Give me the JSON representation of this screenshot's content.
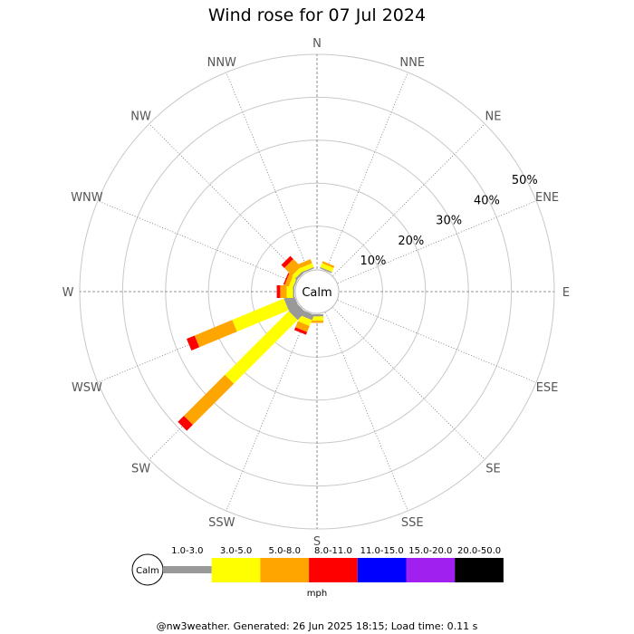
{
  "chart_data": {
    "type": "wind-rose",
    "title": "Wind rose for 07 Jul 2024",
    "directions": [
      "N",
      "NNE",
      "NE",
      "ENE",
      "E",
      "ESE",
      "SE",
      "SSE",
      "S",
      "SSW",
      "SW",
      "WSW",
      "W",
      "WNW",
      "NW",
      "NNW"
    ],
    "ring_labels": [
      "10%",
      "20%",
      "30%",
      "40%",
      "50%"
    ],
    "ring_values": [
      10,
      20,
      30,
      40,
      50
    ],
    "rmax": 50,
    "grid": true,
    "calm_label": "Calm",
    "unit": "mph",
    "speed_bins": [
      {
        "range": "1.0-3.0",
        "color": "#999999"
      },
      {
        "range": "3.0-5.0",
        "color": "#ffff00"
      },
      {
        "range": "5.0-8.0",
        "color": "#ffa500"
      },
      {
        "range": "8.0-11.0",
        "color": "#ff0000"
      },
      {
        "range": "11.0-15.0",
        "color": "#0000ff"
      },
      {
        "range": "15.0-20.0",
        "color": "#a020f0"
      },
      {
        "range": "20.0-50.0",
        "color": "#000000"
      }
    ],
    "series": [
      {
        "direction": "N",
        "values": [
          0,
          0,
          0,
          0,
          0,
          0,
          0
        ]
      },
      {
        "direction": "NNE",
        "values": [
          0.3,
          1.0,
          0.5,
          0,
          0,
          0,
          0
        ]
      },
      {
        "direction": "NE",
        "values": [
          0,
          0,
          0,
          0,
          0,
          0,
          0
        ]
      },
      {
        "direction": "ENE",
        "values": [
          0,
          0,
          0,
          0,
          0,
          0,
          0
        ]
      },
      {
        "direction": "E",
        "values": [
          0,
          0,
          0,
          0,
          0,
          0,
          0
        ]
      },
      {
        "direction": "ESE",
        "values": [
          0,
          0,
          0,
          0,
          0,
          0,
          0
        ]
      },
      {
        "direction": "SE",
        "values": [
          0,
          0,
          0,
          0,
          0,
          0,
          0
        ]
      },
      {
        "direction": "SSE",
        "values": [
          0,
          0,
          0,
          0,
          0,
          0,
          0
        ]
      },
      {
        "direction": "S",
        "values": [
          0.5,
          1.0,
          0.5,
          0,
          0,
          0,
          0
        ]
      },
      {
        "direction": "SSW",
        "values": [
          1.3,
          1.5,
          1.5,
          0.7,
          0,
          0,
          0
        ]
      },
      {
        "direction": "SW",
        "values": [
          2.6,
          21.0,
          13.5,
          2.0,
          0,
          0,
          0
        ]
      },
      {
        "direction": "WSW",
        "values": [
          2.5,
          13.0,
          9.5,
          2.0,
          0,
          0,
          0
        ]
      },
      {
        "direction": "W",
        "values": [
          0.3,
          1.5,
          1.5,
          0.8,
          0,
          0,
          0
        ]
      },
      {
        "direction": "WNW",
        "values": [
          0.3,
          1.0,
          1.0,
          0.3,
          0,
          0,
          0
        ]
      },
      {
        "direction": "NW",
        "values": [
          0.5,
          1.0,
          2.5,
          1.0,
          0,
          0,
          0
        ]
      },
      {
        "direction": "NNW",
        "values": [
          0.3,
          1.0,
          1.0,
          0,
          0,
          0,
          0
        ]
      }
    ]
  },
  "footer": "@nw3weather. Generated: 26 Jun 2025 18:15; Load time: 0.11 s"
}
